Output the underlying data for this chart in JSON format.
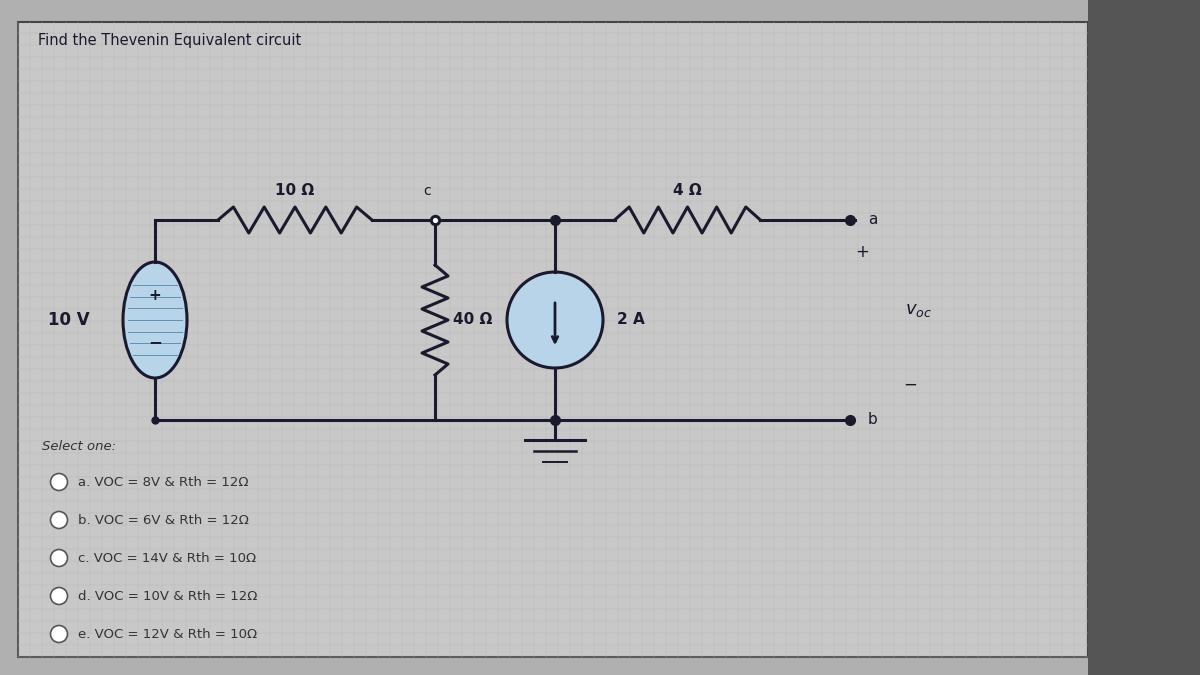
{
  "title": "Find the Thevenin Equivalent circuit",
  "bg_outer": "#b0b0b0",
  "bg_inner": "#c8c8c8",
  "line_color": "#1a1a2e",
  "text_color": "#1a1a2e",
  "select_one": "Select one:",
  "options": [
    "a. VOC = 8V & Rth = 12Ω",
    "b. VOC = 6V & Rth = 12Ω",
    "c. VOC = 14V & Rth = 10Ω",
    "d. VOC = 10V & Rth = 12Ω",
    "e. VOC = 12V & Rth = 10Ω"
  ],
  "resistor_10": "10 Ω",
  "resistor_4": "4 Ω",
  "resistor_40": "40 Ω",
  "voltage_source": "10 V",
  "current_source": "2 A",
  "node_c": "c",
  "node_a": "a",
  "node_b": "b",
  "plus_sign": "+",
  "minus_sign": "−",
  "voc_label": "$v_{oc}$",
  "source_fill": "#b8d4e8"
}
